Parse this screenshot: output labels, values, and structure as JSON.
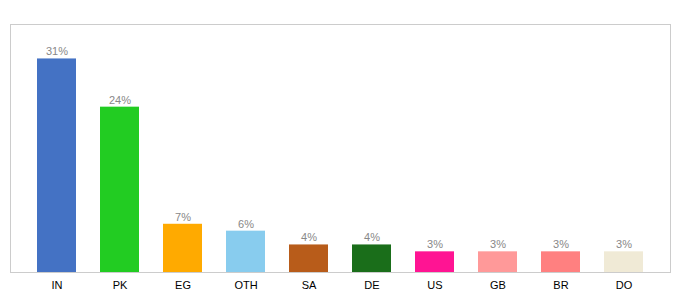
{
  "chart_data": {
    "type": "bar",
    "categories": [
      "IN",
      "PK",
      "EG",
      "OTH",
      "SA",
      "DE",
      "US",
      "GB",
      "BR",
      "DO"
    ],
    "values": [
      31,
      24,
      7,
      6,
      4,
      4,
      3,
      3,
      3,
      3
    ],
    "value_labels": [
      "31%",
      "24%",
      "7%",
      "6%",
      "4%",
      "4%",
      "3%",
      "3%",
      "3%",
      "3%"
    ],
    "colors": [
      "#4472c4",
      "#22cc22",
      "#ffaa00",
      "#88ccee",
      "#b85c1a",
      "#1a6e1a",
      "#ff1493",
      "#ff9999",
      "#ff8080",
      "#f0ead6"
    ],
    "ylim": [
      0,
      36
    ],
    "data_labels": true,
    "tick_labels": "x",
    "grid": false
  }
}
